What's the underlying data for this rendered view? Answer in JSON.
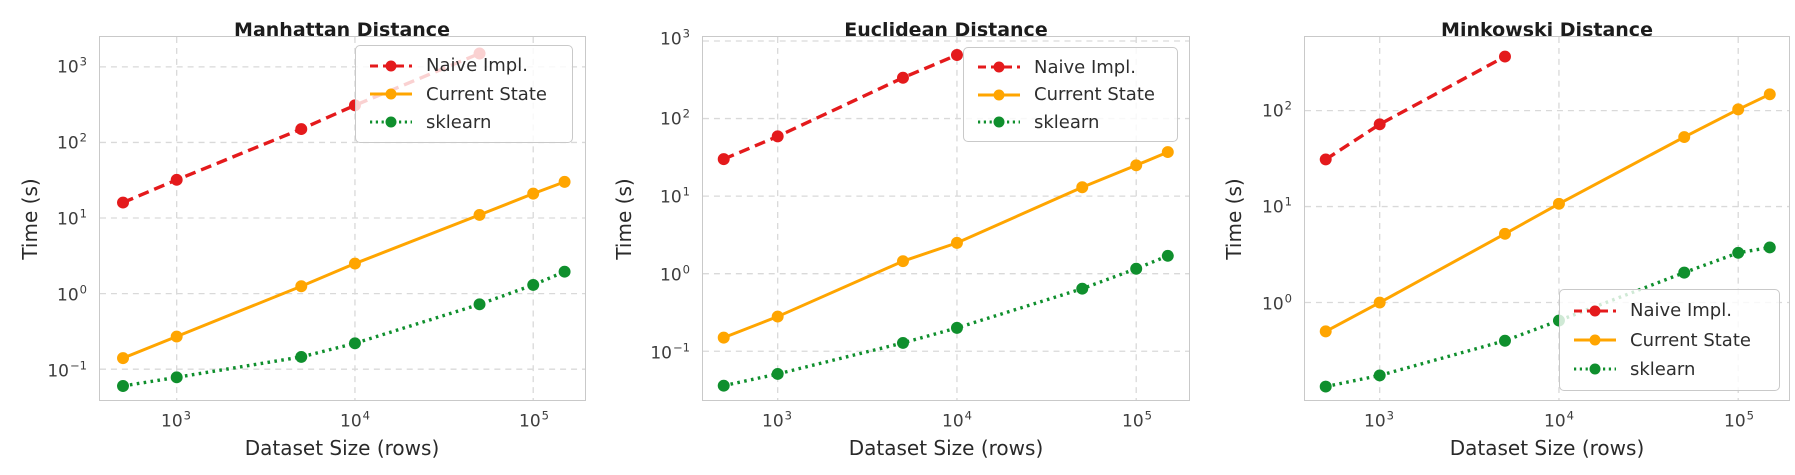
{
  "figure": {
    "background": "#ffffff",
    "grid_color": "#d9d9d9",
    "spine_color": "#c9c9c9",
    "series_colors": {
      "naive": "#e41a1c",
      "current": "#ffa500",
      "sklearn": "#0f8f2d"
    },
    "legend_labels": [
      "Naive Impl.",
      "Current State",
      "sklearn"
    ]
  },
  "chart_data": [
    {
      "type": "line",
      "title": "Manhattan Distance",
      "xlabel": "Dataset Size (rows)",
      "ylabel": "Time (s)",
      "xscale": "log",
      "yscale": "log",
      "grid": true,
      "legend_position": "upper right",
      "xlim": [
        375,
        195000
      ],
      "ylim": [
        0.039,
        2300
      ],
      "x_ticks": [
        {
          "base": "10",
          "exp": "3"
        },
        {
          "base": "10",
          "exp": "4"
        },
        {
          "base": "10",
          "exp": "5"
        }
      ],
      "y_ticks": [
        {
          "base": "10",
          "exp": "3"
        },
        {
          "base": "10",
          "exp": "2"
        },
        {
          "base": "10",
          "exp": "1"
        },
        {
          "base": "10",
          "exp": "0"
        },
        {
          "base": "10",
          "exp": "−1"
        }
      ],
      "series": [
        {
          "name": "Naive Impl.",
          "color_key": "naive",
          "linestyle": "dashed",
          "x": [
            500,
            1000,
            5000,
            10000,
            50000
          ],
          "y": [
            16,
            32,
            150,
            310,
            1500
          ]
        },
        {
          "name": "Current State",
          "color_key": "current",
          "linestyle": "solid",
          "x": [
            500,
            1000,
            5000,
            10000,
            50000,
            100000,
            150000
          ],
          "y": [
            0.14,
            0.27,
            1.25,
            2.5,
            11,
            21,
            30
          ]
        },
        {
          "name": "sklearn",
          "color_key": "sklearn",
          "linestyle": "dotted",
          "x": [
            500,
            1000,
            5000,
            10000,
            50000,
            100000,
            150000
          ],
          "y": [
            0.06,
            0.078,
            0.145,
            0.22,
            0.72,
            1.3,
            1.95
          ]
        }
      ]
    },
    {
      "type": "line",
      "title": "Euclidean Distance",
      "xlabel": "Dataset Size (rows)",
      "ylabel": "Time (s)",
      "xscale": "log",
      "yscale": "log",
      "grid": true,
      "legend_position": "upper right",
      "xlim": [
        380,
        197000
      ],
      "ylim": [
        0.023,
        1050
      ],
      "x_ticks": [
        {
          "base": "10",
          "exp": "3"
        },
        {
          "base": "10",
          "exp": "4"
        },
        {
          "base": "10",
          "exp": "5"
        }
      ],
      "y_ticks": [
        {
          "base": "10",
          "exp": "3"
        },
        {
          "base": "10",
          "exp": "2"
        },
        {
          "base": "10",
          "exp": "1"
        },
        {
          "base": "10",
          "exp": "0"
        },
        {
          "base": "10",
          "exp": "−1"
        }
      ],
      "series": [
        {
          "name": "Naive Impl.",
          "color_key": "naive",
          "linestyle": "dashed",
          "x": [
            500,
            1000,
            5000,
            10000
          ],
          "y": [
            30,
            59,
            335,
            660
          ]
        },
        {
          "name": "Current State",
          "color_key": "current",
          "linestyle": "solid",
          "x": [
            500,
            1000,
            5000,
            10000,
            50000,
            100000,
            150000
          ],
          "y": [
            0.15,
            0.28,
            1.45,
            2.5,
            13,
            25,
            37
          ]
        },
        {
          "name": "sklearn",
          "color_key": "sklearn",
          "linestyle": "dotted",
          "x": [
            500,
            1000,
            5000,
            10000,
            50000,
            100000,
            150000
          ],
          "y": [
            0.036,
            0.051,
            0.128,
            0.2,
            0.64,
            1.16,
            1.7
          ]
        }
      ]
    },
    {
      "type": "line",
      "title": "Minkowski Distance",
      "xlabel": "Dataset Size (rows)",
      "ylabel": "Time (s)",
      "xscale": "log",
      "yscale": "log",
      "grid": true,
      "legend_position": "lower right",
      "xlim": [
        380,
        193000
      ],
      "ylim": [
        0.1,
        560
      ],
      "x_ticks": [
        {
          "base": "10",
          "exp": "3"
        },
        {
          "base": "10",
          "exp": "4"
        },
        {
          "base": "10",
          "exp": "5"
        }
      ],
      "y_ticks": [
        {
          "base": "10",
          "exp": "2"
        },
        {
          "base": "10",
          "exp": "1"
        },
        {
          "base": "10",
          "exp": "0"
        }
      ],
      "series": [
        {
          "name": "Naive Impl.",
          "color_key": "naive",
          "linestyle": "dashed",
          "x": [
            500,
            1000,
            5000
          ],
          "y": [
            31,
            72,
            365
          ]
        },
        {
          "name": "Current State",
          "color_key": "current",
          "linestyle": "solid",
          "x": [
            500,
            1000,
            5000,
            10000,
            50000,
            100000,
            150000
          ],
          "y": [
            0.5,
            1.0,
            5.2,
            10.7,
            53,
            103,
            148
          ]
        },
        {
          "name": "sklearn",
          "color_key": "sklearn",
          "linestyle": "dotted",
          "x": [
            500,
            1000,
            5000,
            10000,
            50000,
            100000,
            150000
          ],
          "y": [
            0.133,
            0.174,
            0.4,
            0.65,
            2.05,
            3.3,
            3.75
          ]
        }
      ]
    }
  ]
}
